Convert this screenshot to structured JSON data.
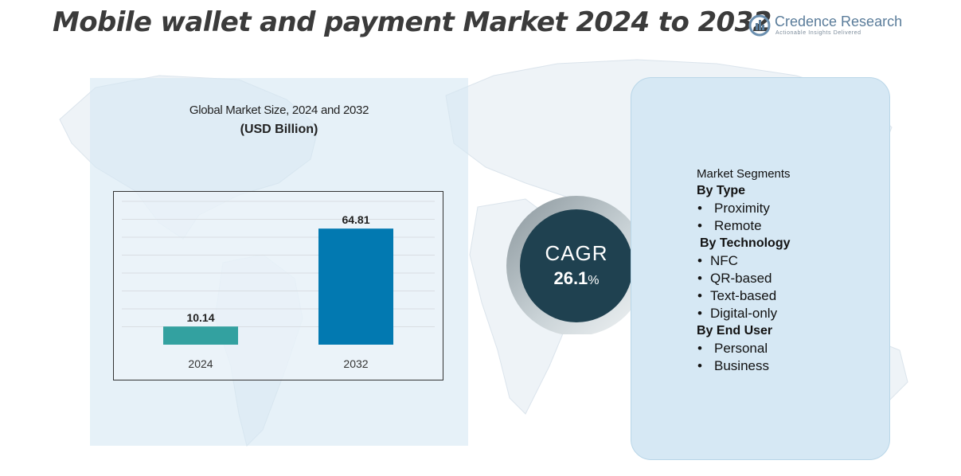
{
  "title": "Mobile wallet and payment Market 2024 to 2032",
  "brand": {
    "name": "Credence Research",
    "tagline": "Actionable Insights Delivered"
  },
  "chart_heading": {
    "line1": "Global Market Size, 2024 and 2032",
    "line2": "(USD Billion)"
  },
  "chart_data": {
    "type": "bar",
    "categories": [
      "2024",
      "2032"
    ],
    "values": [
      10.14,
      64.81
    ],
    "data_labels": [
      "10.14",
      "64.81"
    ],
    "bar_colors": [
      "#33a1a0",
      "#0279b1"
    ],
    "ylim": [
      0,
      80
    ],
    "grid": true,
    "xlabel": "",
    "ylabel": ""
  },
  "cagr": {
    "label": "CAGR",
    "value": "26.1",
    "unit": "%"
  },
  "segments": {
    "title": "Market Segments",
    "groups": [
      {
        "name": "By Type",
        "items": [
          "Proximity",
          "Remote"
        ]
      },
      {
        "name": "By Technology",
        "items": [
          "NFC",
          "QR-based",
          "Text-based",
          "Digital-only"
        ]
      },
      {
        "name": "By End User",
        "items": [
          "Personal",
          "Business"
        ]
      }
    ]
  },
  "colors": {
    "title": "#3b3b3b",
    "panel": "#d6e8f4",
    "cagr_circle": "#1f4150",
    "bar_2024": "#33a1a0",
    "bar_2032": "#0279b1"
  }
}
